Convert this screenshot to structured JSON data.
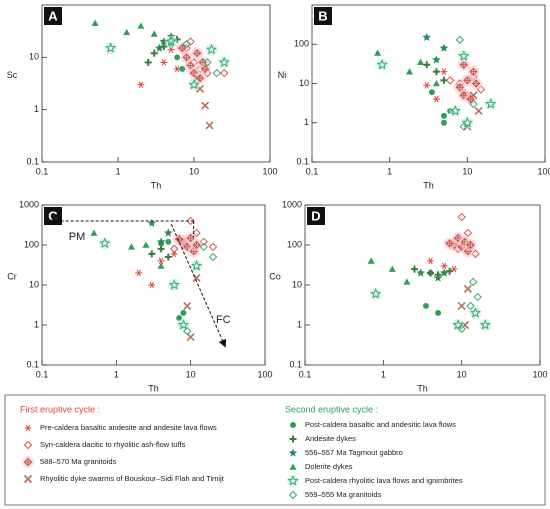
{
  "legend": {
    "groups": [
      {
        "title": "First eruptive cycle :",
        "color": "#e0463c",
        "series": [
          0,
          1,
          2,
          3
        ]
      },
      {
        "title": "Second eruptive cycle :",
        "color": "#2e9e5b",
        "series": [
          4,
          5,
          6,
          7,
          8,
          9
        ]
      }
    ],
    "series": [
      {
        "name": "Pre-caldera basaltic andesite and andesite lava flows",
        "color": "#e0463c",
        "marker": "asterisk"
      },
      {
        "name": "Syn-caldera dacitic to rhyolitic ash-flow tuffs",
        "color": "#d9534f",
        "marker": "diamond"
      },
      {
        "name": "588–570 Ma granitoids",
        "color": "#c9574a",
        "marker": "crossed-diamond"
      },
      {
        "name": "Rhyolitic dyke swarms of Bouskour–Sidi Flah and Timijt",
        "color": "#b8705a",
        "marker": "x"
      },
      {
        "name": "Post-caldera basaltic and  andesitic lava flows",
        "color": "#2e9e5b",
        "marker": "circle"
      },
      {
        "name": "Andesite dykes",
        "color": "#3a7d3a",
        "marker": "plus"
      },
      {
        "name": "556–557 Ma Tagmout gabbro",
        "color": "#2e8b57",
        "marker": "star"
      },
      {
        "name": "Dolerite dykes",
        "color": "#2e9e5b",
        "marker": "triangle"
      },
      {
        "name": "Post-caldera rhyolitic lava flows and ignimbrites",
        "color": "#33aa77",
        "marker": "open-star"
      },
      {
        "name": "559–555 Ma granitoids",
        "color": "#33aa77",
        "marker": "open-diamond"
      }
    ]
  },
  "chart_data": [
    {
      "type": "scatter",
      "label": "A",
      "xlabel": "Th",
      "ylabel": "Sc",
      "log": true,
      "xlim": [
        0.1,
        100
      ],
      "ylim": [
        0.1,
        100
      ],
      "xticks": [
        0.1,
        1,
        10,
        100
      ],
      "yticks": [
        0.1,
        1,
        10
      ],
      "series": [
        {
          "x": [
            4,
            5,
            6,
            2
          ],
          "values": [
            8,
            14,
            6,
            3
          ]
        },
        {
          "x": [
            8,
            10,
            12,
            15,
            25,
            9
          ],
          "values": [
            15,
            8,
            6,
            5,
            5,
            20
          ]
        },
        {
          "x": [
            8,
            9,
            10,
            11,
            12,
            7,
            13,
            14
          ],
          "values": [
            10,
            7,
            5,
            12,
            4,
            15,
            8,
            6
          ]
        },
        {
          "x": [
            12,
            16,
            11,
            14
          ],
          "values": [
            2.5,
            0.5,
            4,
            1.2
          ]
        },
        {
          "x": [
            6,
            5,
            7
          ],
          "values": [
            10,
            18,
            6
          ]
        },
        {
          "x": [
            3,
            4,
            6,
            2.5
          ],
          "values": [
            12,
            16,
            22,
            8
          ]
        },
        {
          "x": [
            4,
            5,
            3.5
          ],
          "values": [
            20,
            25,
            15
          ]
        },
        {
          "x": [
            0.5,
            1.3,
            2,
            3
          ],
          "values": [
            45,
            30,
            40,
            28
          ]
        },
        {
          "x": [
            0.8,
            5,
            10,
            17,
            25
          ],
          "values": [
            15,
            20,
            3,
            14,
            8
          ]
        },
        {
          "x": [
            8,
            20,
            15
          ],
          "values": [
            18,
            5,
            8
          ]
        }
      ]
    },
    {
      "type": "scatter",
      "label": "B",
      "xlabel": "Th",
      "ylabel": "Ni",
      "log": true,
      "xlim": [
        0.1,
        100
      ],
      "ylim": [
        0.1,
        1000
      ],
      "xticks": [
        0.1,
        1,
        10,
        100
      ],
      "yticks": [
        0.1,
        1,
        10,
        100
      ],
      "series": [
        {
          "x": [
            3,
            5,
            9,
            4
          ],
          "values": [
            9,
            20,
            6,
            4
          ]
        },
        {
          "x": [
            8,
            10,
            12,
            6,
            15
          ],
          "values": [
            10,
            5,
            15,
            12,
            7
          ]
        },
        {
          "x": [
            8,
            9,
            10,
            11,
            12,
            9,
            13
          ],
          "values": [
            8,
            5,
            12,
            4,
            20,
            30,
            10
          ]
        },
        {
          "x": [
            10,
            14,
            12
          ],
          "values": [
            0.8,
            2,
            5
          ]
        },
        {
          "x": [
            5,
            5,
            3.5,
            6
          ],
          "values": [
            1.5,
            1,
            6,
            2
          ]
        },
        {
          "x": [
            3,
            4,
            5
          ],
          "values": [
            30,
            20,
            12
          ]
        },
        {
          "x": [
            3,
            5,
            4
          ],
          "values": [
            150,
            80,
            40
          ]
        },
        {
          "x": [
            0.7,
            1.8,
            4,
            2.5
          ],
          "values": [
            60,
            20,
            10,
            35
          ]
        },
        {
          "x": [
            0.8,
            20,
            7,
            9,
            10
          ],
          "values": [
            30,
            3,
            2,
            50,
            1
          ]
        },
        {
          "x": [
            9,
            12,
            8
          ],
          "values": [
            0.8,
            3,
            130
          ]
        }
      ]
    },
    {
      "type": "scatter",
      "label": "C",
      "xlabel": "Th",
      "ylabel": "Cr",
      "log": true,
      "xlim": [
        0.1,
        100
      ],
      "ylim": [
        0.1,
        1000
      ],
      "xticks": [
        0.1,
        1,
        10,
        100
      ],
      "yticks": [
        0.1,
        1,
        10,
        100,
        1000
      ],
      "annotations": [
        "PM",
        "FC"
      ],
      "series": [
        {
          "x": [
            2,
            3,
            4,
            6
          ],
          "values": [
            20,
            10,
            40,
            60
          ]
        },
        {
          "x": [
            8,
            10,
            12,
            15,
            20,
            6
          ],
          "values": [
            100,
            400,
            200,
            120,
            90,
            80
          ]
        },
        {
          "x": [
            8,
            9,
            10,
            11,
            12,
            7
          ],
          "values": [
            120,
            90,
            150,
            70,
            100,
            140
          ]
        },
        {
          "x": [
            10,
            9,
            12
          ],
          "values": [
            0.5,
            3,
            15
          ]
        },
        {
          "x": [
            4,
            8,
            7,
            5
          ],
          "values": [
            110,
            2,
            1.5,
            120
          ]
        },
        {
          "x": [
            3,
            4,
            5
          ],
          "values": [
            60,
            80,
            50
          ]
        },
        {
          "x": [
            3,
            4,
            5
          ],
          "values": [
            350,
            120,
            200
          ]
        },
        {
          "x": [
            0.5,
            1.6,
            2.5,
            4
          ],
          "values": [
            200,
            90,
            100,
            30
          ]
        },
        {
          "x": [
            0.7,
            8,
            6,
            12
          ],
          "values": [
            110,
            1,
            10,
            30
          ]
        },
        {
          "x": [
            9,
            15,
            20
          ],
          "values": [
            0.7,
            90,
            50
          ]
        }
      ]
    },
    {
      "type": "scatter",
      "label": "D",
      "xlabel": "Th",
      "ylabel": "Co",
      "log": true,
      "xlim": [
        0.1,
        100
      ],
      "ylim": [
        0.1,
        1000
      ],
      "xticks": [
        0.1,
        1,
        10,
        100
      ],
      "yticks": [
        0.1,
        1,
        10,
        100,
        1000
      ],
      "series": [
        {
          "x": [
            4,
            6,
            8
          ],
          "values": [
            40,
            30,
            25
          ]
        },
        {
          "x": [
            8,
            10,
            12,
            9,
            15
          ],
          "values": [
            120,
            500,
            200,
            80,
            60
          ]
        },
        {
          "x": [
            8,
            9,
            10,
            11,
            12,
            7,
            13
          ],
          "values": [
            100,
            150,
            90,
            120,
            70,
            110,
            100
          ]
        },
        {
          "x": [
            10,
            12,
            11
          ],
          "values": [
            3,
            8,
            1
          ]
        },
        {
          "x": [
            3.5,
            5,
            4
          ],
          "values": [
            3,
            2,
            20
          ]
        },
        {
          "x": [
            2.5,
            4,
            5,
            7
          ],
          "values": [
            25,
            20,
            18,
            22
          ]
        },
        {
          "x": [
            3,
            5,
            6
          ],
          "values": [
            20,
            15,
            20
          ]
        },
        {
          "x": [
            0.7,
            1.3,
            2
          ],
          "values": [
            40,
            25,
            12
          ]
        },
        {
          "x": [
            0.8,
            9,
            15,
            20
          ],
          "values": [
            6,
            1,
            2,
            1
          ]
        },
        {
          "x": [
            10,
            13,
            16,
            14
          ],
          "values": [
            0.8,
            3,
            5,
            12
          ]
        }
      ]
    }
  ]
}
